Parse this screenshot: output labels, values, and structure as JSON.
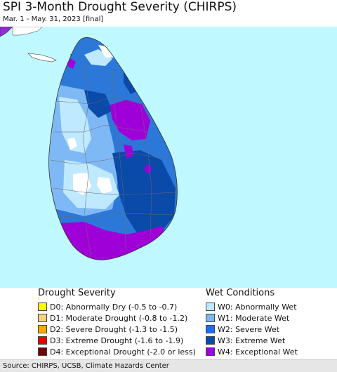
{
  "header": {
    "title": "SPI 3-Month Drought Severity (CHIRPS)",
    "subtitle": "Mar. 1 - May. 31, 2023 [final]"
  },
  "map": {
    "ocean_color": "#bff8ff",
    "land_base_color": "#2c78d8"
  },
  "legend": {
    "drought": {
      "heading": "Drought Severity",
      "items": [
        {
          "label": "D0: Abnormally Dry (-0.5 to -0.7)",
          "color": "#ffff00"
        },
        {
          "label": "D1: Moderate Drought (-0.8 to -1.2)",
          "color": "#fcd37f"
        },
        {
          "label": "D2: Severe Drought (-1.3 to -1.5)",
          "color": "#ffaa00"
        },
        {
          "label": "D3: Extreme Drought (-1.6 to -1.9)",
          "color": "#e60000"
        },
        {
          "label": "D4: Exceptional Drought (-2.0 or less)",
          "color": "#730000"
        }
      ]
    },
    "wet": {
      "heading": "Wet Conditions",
      "items": [
        {
          "label": "W0: Abnormally Wet",
          "color": "#bfe9ff"
        },
        {
          "label": "W1: Moderate Wet",
          "color": "#7fb9f5"
        },
        {
          "label": "W2: Severe Wet",
          "color": "#1e6ef5"
        },
        {
          "label": "W3: Extreme Wet",
          "color": "#0a4aa8"
        },
        {
          "label": "W4: Exceptional Wet",
          "color": "#a000d8"
        }
      ]
    }
  },
  "footer": {
    "source": "Source: CHIRPS, UCSB, Climate Hazards Center"
  }
}
